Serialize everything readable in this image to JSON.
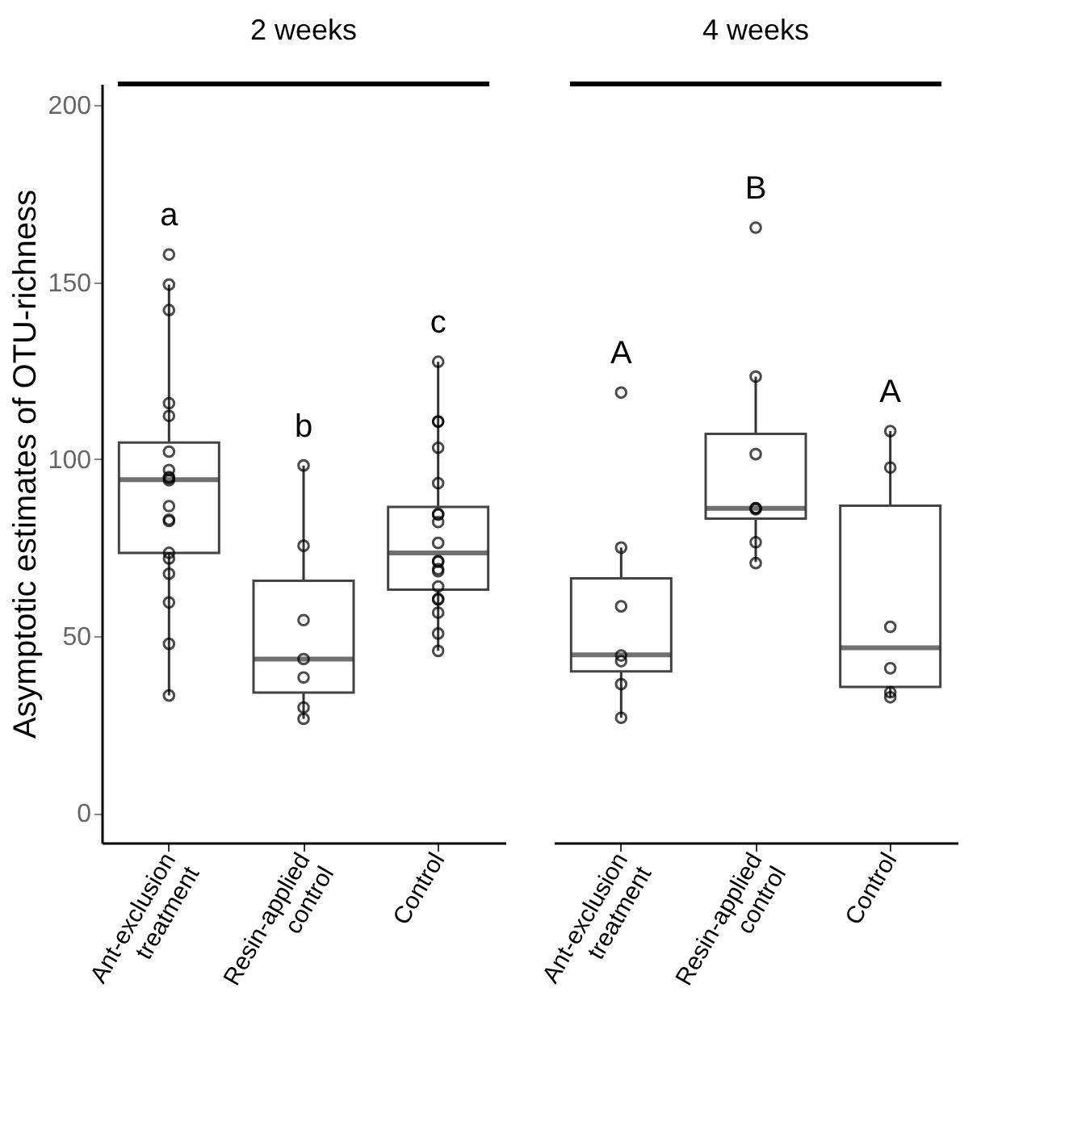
{
  "chart_data": [
    {
      "type": "box",
      "title": "2 weeks",
      "ylabel": "Asymptotic estimates of OTU-richness",
      "categories": [
        "Ant-exclusion treatment",
        "Resin-applied control",
        "Control"
      ],
      "boxes": [
        {
          "low": 33.2,
          "q1": 73.5,
          "median": 94.2,
          "q3": 104.7,
          "high": 149.3,
          "outliers": [
            157.8
          ]
        },
        {
          "low": 26.6,
          "q1": 34.0,
          "median": 43.5,
          "q3": 65.6,
          "high": 98.2
        },
        {
          "low": 45.8,
          "q1": 63.1,
          "median": 73.5,
          "q3": 86.5,
          "high": 127.5
        }
      ],
      "series": [
        {
          "type": "scatter",
          "color": "#000000",
          "marker": "circle",
          "x": [
            "Ant-exclusion treatment",
            "Ant-exclusion treatment",
            "Ant-exclusion treatment",
            "Ant-exclusion treatment",
            "Ant-exclusion treatment",
            "Ant-exclusion treatment",
            "Ant-exclusion treatment",
            "Ant-exclusion treatment",
            "Ant-exclusion treatment",
            "Ant-exclusion treatment",
            "Ant-exclusion treatment",
            "Ant-exclusion treatment",
            "Ant-exclusion treatment",
            "Ant-exclusion treatment",
            "Ant-exclusion treatment",
            "Ant-exclusion treatment",
            "Ant-exclusion treatment",
            "Ant-exclusion treatment",
            "Resin-applied control",
            "Resin-applied control",
            "Resin-applied control",
            "Resin-applied control",
            "Resin-applied control",
            "Resin-applied control",
            "Resin-applied control",
            "Control",
            "Control",
            "Control",
            "Control",
            "Control",
            "Control",
            "Control",
            "Control",
            "Control",
            "Control",
            "Control",
            "Control",
            "Control",
            "Control",
            "Control",
            "Control",
            "Control",
            "Control",
            "Control"
          ],
          "values": [
            149.3,
            142.1,
            115.8,
            112.2,
            102.1,
            96.9,
            94.9,
            94.6,
            94.0,
            86.7,
            82.9,
            82.5,
            73.5,
            71.9,
            67.6,
            59.5,
            47.8,
            33.2,
            98.2,
            75.5,
            54.5,
            43.5,
            38.3,
            29.8,
            26.6,
            127.5,
            110.6,
            110.6,
            103.2,
            93.2,
            84.5,
            84.3,
            82.2,
            76.3,
            71.2,
            71.0,
            68.9,
            68.3,
            64.0,
            60.5,
            60.3,
            56.6,
            50.7,
            45.8
          ]
        }
      ],
      "annotations": [
        "a",
        "b",
        "c"
      ],
      "ylim": [
        -8.4,
        206
      ],
      "yticks": [
        0,
        50,
        100,
        150,
        200
      ],
      "grid": false
    },
    {
      "type": "box",
      "title": "4 weeks",
      "categories": [
        "Ant-exclusion treatment",
        "Resin-applied control",
        "Control"
      ],
      "boxes": [
        {
          "low": 26.9,
          "q1": 40.0,
          "median": 44.7,
          "q3": 66.3,
          "high": 75.0,
          "outliers": [
            118.8
          ]
        },
        {
          "low": 70.9,
          "q1": 83.2,
          "median": 86.1,
          "q3": 107.1,
          "high": 123.3,
          "outliers": [
            165.4
          ]
        },
        {
          "low": 32.7,
          "q1": 35.6,
          "median": 46.7,
          "q3": 86.8,
          "high": 107.9
        }
      ],
      "series": [
        {
          "type": "scatter",
          "color": "#000000",
          "marker": "circle",
          "x": [
            "Ant-exclusion treatment",
            "Ant-exclusion treatment",
            "Ant-exclusion treatment",
            "Ant-exclusion treatment",
            "Ant-exclusion treatment",
            "Ant-exclusion treatment",
            "Resin-applied control",
            "Resin-applied control",
            "Resin-applied control",
            "Resin-applied control",
            "Resin-applied control",
            "Resin-applied control",
            "Resin-applied control",
            "Control",
            "Control",
            "Control",
            "Control",
            "Control",
            "Control"
          ],
          "values": [
            75.0,
            58.4,
            44.5,
            42.9,
            36.4,
            26.9,
            123.3,
            101.4,
            86.1,
            85.8,
            86.1,
            76.5,
            70.6,
            107.9,
            97.6,
            52.6,
            40.9,
            34.1,
            32.7
          ]
        }
      ],
      "annotations": [
        "A",
        "B",
        "A"
      ],
      "ylim": [
        -8.4,
        206
      ],
      "yticks": [
        0,
        50,
        100,
        150,
        200
      ],
      "tick_labels": "x",
      "grid": false
    }
  ]
}
